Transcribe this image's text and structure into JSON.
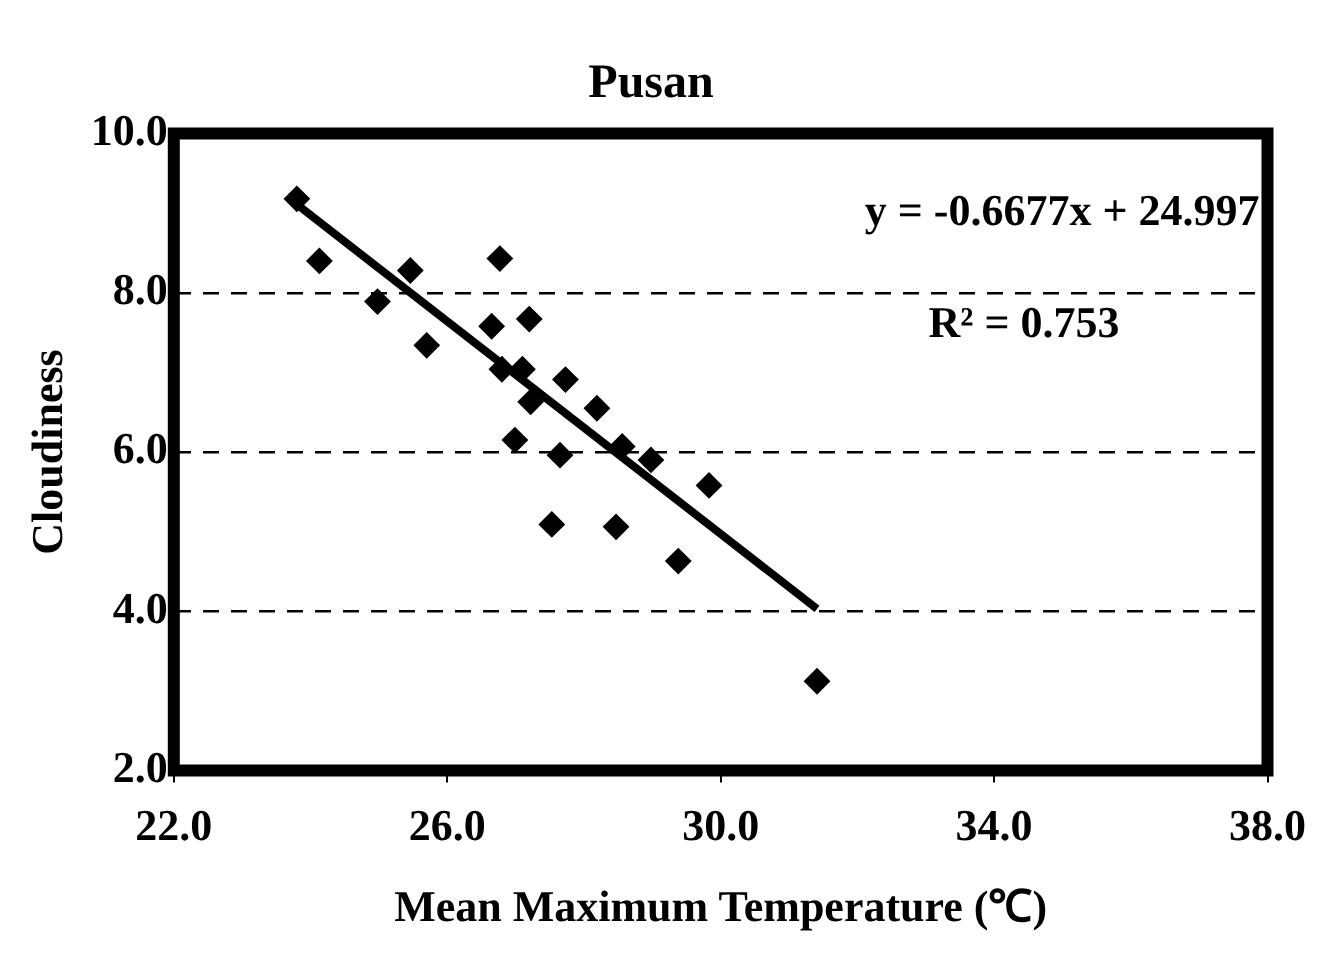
{
  "chart_data": {
    "type": "scatter",
    "title": "Pusan",
    "xlabel": "Mean Maximum Temperature (℃)",
    "ylabel": "Cloudiness",
    "xlim": [
      22,
      38
    ],
    "xticks": [
      {
        "value": 22,
        "label": "22.0"
      },
      {
        "value": 26,
        "label": "26.0"
      },
      {
        "value": 30,
        "label": "30.0"
      },
      {
        "value": 34,
        "label": "34.0"
      },
      {
        "value": 38,
        "label": "38.0"
      }
    ],
    "ylim": [
      2,
      10
    ],
    "yticks": [
      {
        "value": 2,
        "label": "2.0"
      },
      {
        "value": 4,
        "label": "4.0"
      },
      {
        "value": 6,
        "label": "6.0"
      },
      {
        "value": 8,
        "label": "8.0"
      },
      {
        "value": 10,
        "label": "10.0"
      }
    ],
    "grid": "y",
    "line_style": "dashed",
    "legend": false,
    "marker": "diamond",
    "annotations": [
      "y = -0.6677x + 24.997",
      "R² = 0.753"
    ],
    "series": [
      {
        "color": "#000000",
        "x": [
          23.8,
          24.13,
          24.98,
          25.46,
          25.7,
          26.77,
          26.65,
          27.2,
          26.8,
          27.1,
          27.22,
          27.73,
          26.99,
          27.65,
          28.19,
          28.56,
          28.98,
          29.83,
          27.53,
          28.47,
          29.38,
          31.41
        ],
        "values": [
          9.18,
          8.4,
          7.89,
          8.28,
          7.34,
          8.43,
          7.58,
          7.67,
          7.04,
          7.04,
          6.63,
          6.91,
          6.15,
          5.96,
          6.55,
          6.07,
          5.9,
          5.58,
          5.09,
          5.06,
          4.63,
          3.12
        ]
      },
      {
        "type": "line",
        "color": "#000000",
        "marker": "none",
        "line_style": "solid",
        "x": [
          23.8,
          31.41
        ],
        "values": [
          9.11,
          4.03
        ]
      }
    ]
  }
}
